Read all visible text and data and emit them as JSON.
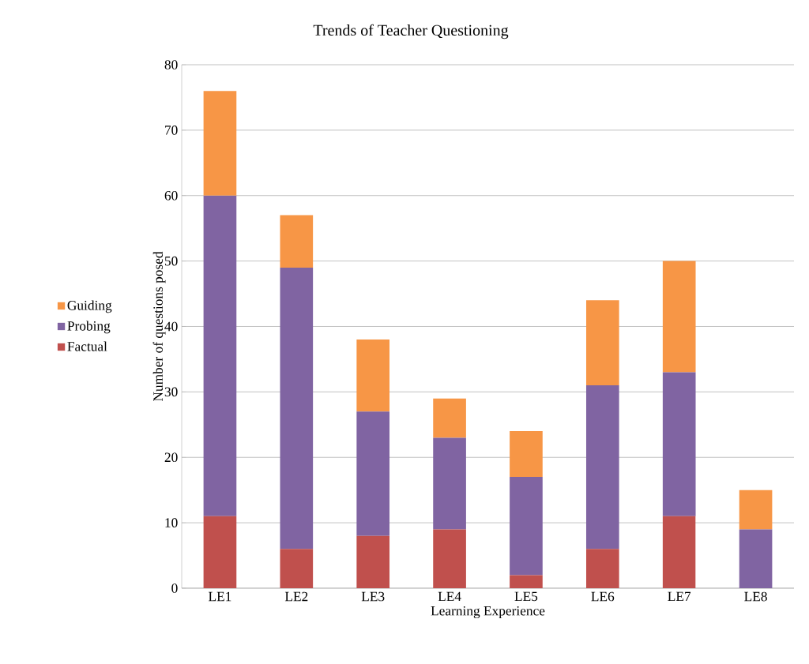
{
  "chart_data": {
    "type": "bar",
    "stacked": true,
    "title": "Trends of Teacher Questioning",
    "xlabel": "Learning Experience",
    "ylabel": "Number of questions posed",
    "categories": [
      "LE1",
      "LE2",
      "LE3",
      "LE4",
      "LE5",
      "LE6",
      "LE7",
      "LE8"
    ],
    "series": [
      {
        "name": "Factual",
        "color": "#c0504d",
        "values": [
          11,
          6,
          8,
          9,
          2,
          6,
          11,
          0
        ]
      },
      {
        "name": "Probing",
        "color": "#8064a2",
        "values": [
          49,
          43,
          19,
          14,
          15,
          25,
          22,
          9
        ]
      },
      {
        "name": "Guiding",
        "color": "#f79646",
        "values": [
          16,
          8,
          11,
          6,
          7,
          13,
          17,
          6
        ]
      }
    ],
    "ylim": [
      0,
      80
    ],
    "yticks": [
      0,
      10,
      20,
      30,
      40,
      50,
      60,
      70,
      80
    ],
    "grid": "y",
    "legend": "left"
  }
}
